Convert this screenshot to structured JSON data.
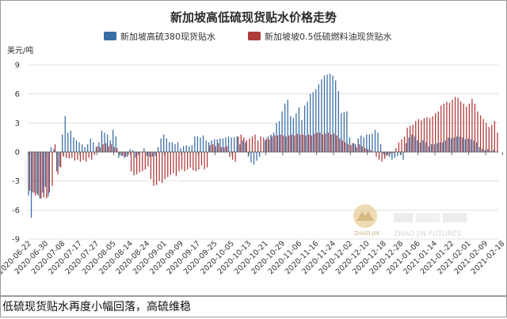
{
  "caption": "低硫现货贴水再度小幅回落，高硫维稳",
  "watermark": {
    "text": "ZHAO JIN FUTURES",
    "logo_text": "ZHAO JIN"
  },
  "chart_data": {
    "type": "bar",
    "title": "新加坡高低硫现货贴水价格走势",
    "ylabel": "美元/吨",
    "ylim": [
      -9,
      9
    ],
    "yticks": [
      -9,
      -6,
      -3,
      0,
      3,
      6,
      9
    ],
    "grid": true,
    "legend_position": "top-center",
    "x_tick_labels": [
      "2020-06-22",
      "2020-06-30",
      "2020-07-08",
      "2020-07-17",
      "2020-07-27",
      "2020-08-05",
      "2020-08-14",
      "2020-08-24",
      "2020-09-01",
      "2020-09-09",
      "2020-09-17",
      "2020-09-25",
      "2020-10-05",
      "2020-10-13",
      "2020-10-21",
      "2020-10-29",
      "2020-11-06",
      "2020-11-16",
      "2020-11-24",
      "2020-12-02",
      "2020-12-10",
      "2020-12-18",
      "2020-12-28",
      "2021-01-06",
      "2021-01-14",
      "2021-01-22",
      "2021-02-01",
      "2021-02-09",
      "2021-02-18"
    ],
    "x_tick_every": 6,
    "series": [
      {
        "name": "新加坡高硫380现货贴水",
        "color": "#3a6ea5",
        "values": [
          -4.5,
          -6.8,
          -4.2,
          -4.3,
          -4.8,
          -4.2,
          -3.6,
          -4.6,
          0.5,
          0.3,
          -2.0,
          -1.5,
          1.8,
          3.7,
          2.0,
          2.2,
          1.5,
          1.2,
          1.0,
          0.8,
          0.5,
          0.8,
          1.4,
          1.0,
          0.5,
          1.0,
          2.2,
          2.0,
          1.8,
          1.2,
          2.3,
          1.6,
          -0.6,
          -0.4,
          -0.6,
          -0.5,
          0.3,
          0.2,
          -0.6,
          -0.3,
          0.0,
          0.4,
          -0.4,
          -0.5,
          -0.5,
          -0.4,
          0.5,
          1.4,
          1.8,
          1.4,
          1.0,
          1.0,
          0.8,
          1.0,
          0.4,
          0.6,
          0.7,
          0.6,
          0.7,
          1.6,
          1.6,
          1.5,
          1.7,
          1.2,
          1.0,
          1.2,
          1.3,
          1.3,
          1.4,
          1.4,
          1.5,
          1.6,
          1.5,
          1.5,
          1.6,
          0.8,
          1.2,
          1.0,
          -0.5,
          -1.1,
          -1.3,
          -0.9,
          -0.5,
          0.0,
          1.2,
          1.6,
          1.8,
          2.0,
          3.0,
          3.2,
          4.2,
          5.0,
          5.4,
          3.7,
          3.5,
          4.0,
          4.6,
          3.3,
          4.8,
          5.2,
          6.0,
          6.2,
          6.5,
          7.0,
          7.5,
          7.9,
          8.0,
          8.1,
          7.9,
          7.4,
          6.3,
          4.0,
          4.1,
          4.2,
          1.5,
          0.9,
          0.8,
          1.4,
          1.7,
          1.5,
          1.8,
          1.8,
          1.9,
          2.3,
          2.0,
          0.8,
          -0.2,
          -0.4,
          -0.5,
          -0.8,
          -0.6,
          -0.4,
          -0.3,
          -0.8,
          0.9,
          1.5,
          1.8,
          1.6,
          1.2,
          1.0,
          1.2,
          1.0,
          0.6,
          0.8,
          0.8,
          0.9,
          1.0,
          1.0,
          1.2,
          1.5,
          1.4,
          1.5,
          1.6,
          1.6,
          1.5,
          1.3,
          1.4,
          1.3,
          1.2,
          1.0,
          0.5,
          0.3,
          0.2,
          0.3,
          0.1,
          0.2,
          0.0
        ]
      },
      {
        "name": "新加坡坡0.5低硫燃料油现货贴水",
        "color": "#b03a3a",
        "values": [
          -4.0,
          -4.2,
          -4.5,
          -4.5,
          -4.8,
          -4.7,
          -4.8,
          -4.2,
          -3.5,
          0.8,
          -2.3,
          -1.6,
          -0.5,
          -0.6,
          -0.7,
          -0.6,
          -0.9,
          -0.8,
          -1.0,
          -0.8,
          -1.0,
          -0.6,
          -0.8,
          -0.3,
          0.6,
          0.5,
          0.8,
          0.9,
          0.6,
          0.8,
          0.5,
          0.4,
          -0.3,
          -0.4,
          -0.5,
          -0.3,
          -2.0,
          -2.4,
          -2.3,
          -2.1,
          -2.0,
          -1.8,
          -1.5,
          -2.8,
          -3.5,
          -3.4,
          -3.0,
          -3.2,
          -2.8,
          -2.6,
          -2.4,
          -2.2,
          -2.5,
          -2.0,
          -1.8,
          -2.0,
          -1.8,
          -1.6,
          -1.9,
          -2.0,
          -1.8,
          -1.4,
          -1.8,
          -1.6,
          0.7,
          0.8,
          0.6,
          0.9,
          0.5,
          0.5,
          0.6,
          -0.5,
          -0.8,
          -1.0,
          1.6,
          1.8,
          1.5,
          1.2,
          1.4,
          1.6,
          1.8,
          1.2,
          1.6,
          1.5,
          1.4,
          1.3,
          1.6,
          1.7,
          1.7,
          1.8,
          1.7,
          1.6,
          1.7,
          1.8,
          1.7,
          1.9,
          1.8,
          1.8,
          1.7,
          1.8,
          1.7,
          1.9,
          2.0,
          2.0,
          1.8,
          1.9,
          2.0,
          1.8,
          1.9,
          1.7,
          1.4,
          1.2,
          1.0,
          0.8,
          0.7,
          0.9,
          0.5,
          0.8,
          0.6,
          0.4,
          0.3,
          0.2,
          0.0,
          -0.5,
          -0.8,
          -1.0,
          -0.7,
          -0.3,
          -0.2,
          -0.1,
          0.4,
          1.0,
          1.3,
          1.6,
          2.5,
          2.7,
          2.8,
          3.2,
          3.4,
          3.3,
          3.5,
          3.6,
          3.5,
          3.7,
          4.0,
          4.2,
          4.8,
          5.0,
          5.2,
          5.1,
          5.4,
          5.7,
          5.6,
          5.2,
          5.0,
          4.7,
          5.0,
          5.5,
          5.0,
          4.2,
          3.8,
          3.4,
          3.0,
          2.6,
          2.8,
          3.2,
          2.0
        ]
      }
    ]
  }
}
